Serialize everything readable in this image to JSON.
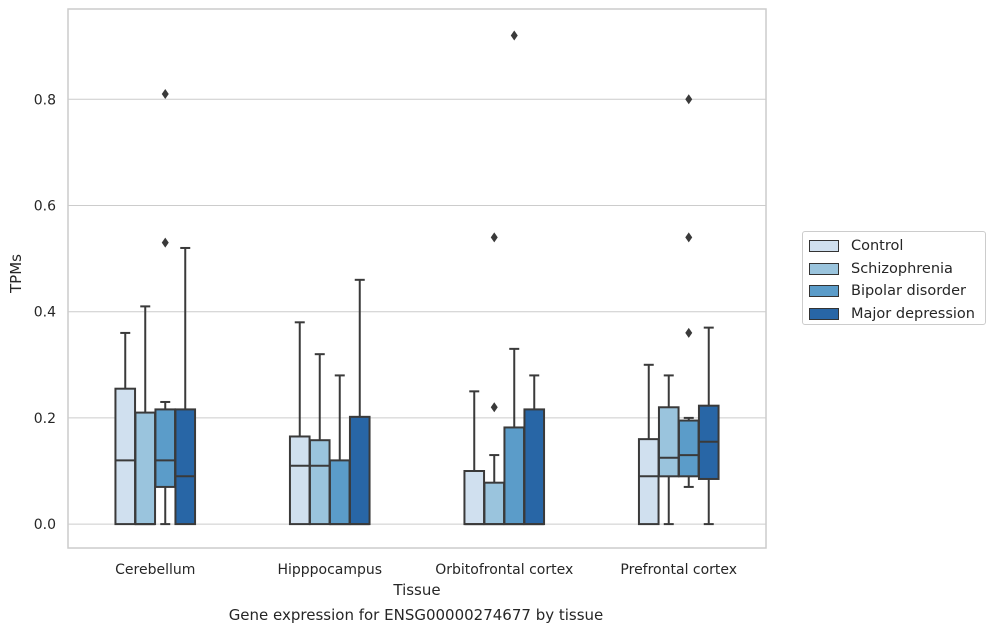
{
  "chart_data": {
    "type": "box",
    "xlabel": "Tissue",
    "ylabel": "TPMs",
    "caption": "Gene expression for ENSG00000274677 by tissue",
    "ylim": [
      -0.045,
      0.97
    ],
    "yticks": [
      "0.0",
      "0.2",
      "0.4",
      "0.6",
      "0.8"
    ],
    "grid": true,
    "legend_position": "right, outside",
    "categories": [
      "Cerebellum",
      "Hipppocampus",
      "Orbitofrontal cortex",
      "Prefrontal cortex"
    ],
    "series": [
      {
        "name": "Control",
        "color": "#d0e0ef",
        "boxes": [
          {
            "q1": 0.0,
            "median": 0.12,
            "q3": 0.255,
            "whisker_low": 0.0,
            "whisker_high": 0.36,
            "outliers": []
          },
          {
            "q1": 0.0,
            "median": 0.11,
            "q3": 0.165,
            "whisker_low": 0.0,
            "whisker_high": 0.38,
            "outliers": []
          },
          {
            "q1": 0.0,
            "median": 0.0,
            "q3": 0.1,
            "whisker_low": 0.0,
            "whisker_high": 0.25,
            "outliers": []
          },
          {
            "q1": 0.0,
            "median": 0.09,
            "q3": 0.16,
            "whisker_low": 0.0,
            "whisker_high": 0.3,
            "outliers": []
          }
        ]
      },
      {
        "name": "Schizophrenia",
        "color": "#9ac4dd",
        "boxes": [
          {
            "q1": 0.0,
            "median": 0.0,
            "q3": 0.21,
            "whisker_low": 0.0,
            "whisker_high": 0.41,
            "outliers": []
          },
          {
            "q1": 0.0,
            "median": 0.11,
            "q3": 0.158,
            "whisker_low": 0.0,
            "whisker_high": 0.32,
            "outliers": []
          },
          {
            "q1": 0.0,
            "median": 0.0,
            "q3": 0.078,
            "whisker_low": 0.0,
            "whisker_high": 0.13,
            "outliers": [
              0.22,
              0.54
            ]
          },
          {
            "q1": 0.09,
            "median": 0.125,
            "q3": 0.22,
            "whisker_low": 0.0,
            "whisker_high": 0.28,
            "outliers": []
          }
        ]
      },
      {
        "name": "Bipolar disorder",
        "color": "#5b9cc9",
        "boxes": [
          {
            "q1": 0.07,
            "median": 0.12,
            "q3": 0.216,
            "whisker_low": 0.0,
            "whisker_high": 0.23,
            "outliers": [
              0.53,
              0.81
            ]
          },
          {
            "q1": 0.0,
            "median": 0.0,
            "q3": 0.12,
            "whisker_low": 0.0,
            "whisker_high": 0.28,
            "outliers": []
          },
          {
            "q1": 0.0,
            "median": 0.0,
            "q3": 0.182,
            "whisker_low": 0.0,
            "whisker_high": 0.33,
            "outliers": [
              0.92
            ]
          },
          {
            "q1": 0.09,
            "median": 0.13,
            "q3": 0.195,
            "whisker_low": 0.07,
            "whisker_high": 0.2,
            "outliers": [
              0.36,
              0.54,
              0.8
            ]
          }
        ]
      },
      {
        "name": "Major depression",
        "color": "#2866a6",
        "boxes": [
          {
            "q1": 0.0,
            "median": 0.09,
            "q3": 0.216,
            "whisker_low": 0.0,
            "whisker_high": 0.52,
            "outliers": []
          },
          {
            "q1": 0.0,
            "median": 0.0,
            "q3": 0.202,
            "whisker_low": 0.0,
            "whisker_high": 0.46,
            "outliers": []
          },
          {
            "q1": 0.0,
            "median": 0.0,
            "q3": 0.216,
            "whisker_low": 0.0,
            "whisker_high": 0.28,
            "outliers": []
          },
          {
            "q1": 0.085,
            "median": 0.155,
            "q3": 0.223,
            "whisker_low": 0.0,
            "whisker_high": 0.37,
            "outliers": []
          }
        ]
      }
    ]
  }
}
